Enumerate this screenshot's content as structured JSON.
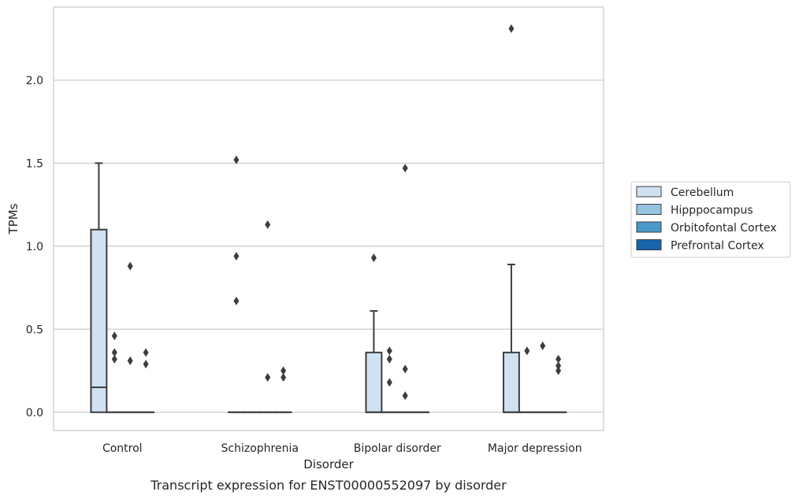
{
  "caption": "Transcript expression for ENST00000552097 by disorder",
  "chart_data": {
    "type": "box",
    "xlabel": "Disorder",
    "ylabel": "TPMs",
    "categories": [
      "Control",
      "Schizophrenia",
      "Bipolar disorder",
      "Major depression"
    ],
    "hues": [
      "Cerebellum",
      "Hipppocampus",
      "Orbitofontal Cortex",
      "Prefrontal Cortex"
    ],
    "hue_colors": [
      "#d0e1f2",
      "#94c4df",
      "#4a98c9",
      "#1764ab"
    ],
    "ylim": [
      -0.11,
      2.44
    ],
    "yticks": [
      0.0,
      0.5,
      1.0,
      1.5,
      2.0
    ],
    "ytick_labels": [
      "0.0",
      "0.5",
      "1.0",
      "1.5",
      "2.0"
    ],
    "grid": "horizontal",
    "legend_position": "right",
    "boxes": [
      [
        {
          "q1": 0,
          "median": 0.15,
          "q3": 1.1,
          "whisker_low": 0,
          "whisker_high": 1.5,
          "outliers": []
        },
        {
          "q1": 0,
          "median": 0,
          "q3": 0,
          "whisker_low": 0,
          "whisker_high": 0,
          "outliers": [
            0.46,
            0.36,
            0.32
          ]
        },
        {
          "q1": 0,
          "median": 0,
          "q3": 0,
          "whisker_low": 0,
          "whisker_high": 0,
          "outliers": [
            0.88,
            0.31
          ]
        },
        {
          "q1": 0,
          "median": 0,
          "q3": 0,
          "whisker_low": 0,
          "whisker_high": 0,
          "outliers": [
            0.36,
            0.29
          ]
        }
      ],
      [
        {
          "q1": 0,
          "median": 0,
          "q3": 0,
          "whisker_low": 0,
          "whisker_high": 0,
          "outliers": [
            1.52,
            0.94,
            0.67
          ]
        },
        {
          "q1": 0,
          "median": 0,
          "q3": 0,
          "whisker_low": 0,
          "whisker_high": 0,
          "outliers": []
        },
        {
          "q1": 0,
          "median": 0,
          "q3": 0,
          "whisker_low": 0,
          "whisker_high": 0,
          "outliers": [
            1.13,
            0.21
          ]
        },
        {
          "q1": 0,
          "median": 0,
          "q3": 0,
          "whisker_low": 0,
          "whisker_high": 0,
          "outliers": [
            0.25,
            0.21
          ]
        }
      ],
      [
        {
          "q1": 0,
          "median": 0,
          "q3": 0.36,
          "whisker_low": 0,
          "whisker_high": 0.61,
          "outliers": [
            0.93
          ]
        },
        {
          "q1": 0,
          "median": 0,
          "q3": 0,
          "whisker_low": 0,
          "whisker_high": 0,
          "outliers": [
            0.37,
            0.32,
            0.18
          ]
        },
        {
          "q1": 0,
          "median": 0,
          "q3": 0,
          "whisker_low": 0,
          "whisker_high": 0,
          "outliers": [
            1.47,
            0.26,
            0.1
          ]
        },
        {
          "q1": 0,
          "median": 0,
          "q3": 0,
          "whisker_low": 0,
          "whisker_high": 0,
          "outliers": []
        }
      ],
      [
        {
          "q1": 0,
          "median": 0,
          "q3": 0.36,
          "whisker_low": 0,
          "whisker_high": 0.89,
          "outliers": [
            2.31
          ]
        },
        {
          "q1": 0,
          "median": 0,
          "q3": 0,
          "whisker_low": 0,
          "whisker_high": 0,
          "outliers": [
            0.37
          ]
        },
        {
          "q1": 0,
          "median": 0,
          "q3": 0,
          "whisker_low": 0,
          "whisker_high": 0,
          "outliers": [
            0.4
          ]
        },
        {
          "q1": 0,
          "median": 0,
          "q3": 0,
          "whisker_low": 0,
          "whisker_high": 0,
          "outliers": [
            0.32,
            0.28,
            0.25
          ]
        }
      ]
    ]
  }
}
